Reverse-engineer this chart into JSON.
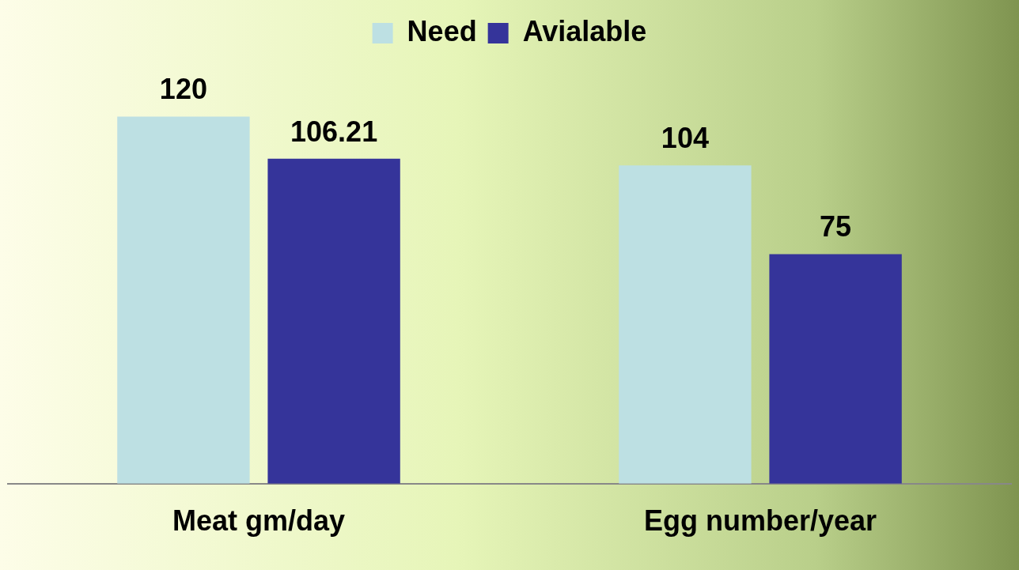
{
  "chart_data": {
    "type": "bar",
    "categories": [
      "Meat gm/day",
      "Egg number/year"
    ],
    "series": [
      {
        "name": "Need",
        "color": "#bde0e3",
        "values": [
          120,
          104
        ]
      },
      {
        "name": "Avialable",
        "color": "#35349a",
        "values": [
          106.21,
          75
        ]
      }
    ],
    "data_labels": true,
    "legend": "top",
    "grid": false
  }
}
